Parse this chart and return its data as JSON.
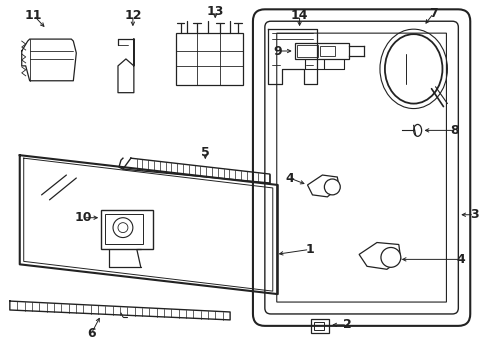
{
  "bg_color": "#ffffff",
  "line_color": "#222222",
  "lw": 1.0
}
